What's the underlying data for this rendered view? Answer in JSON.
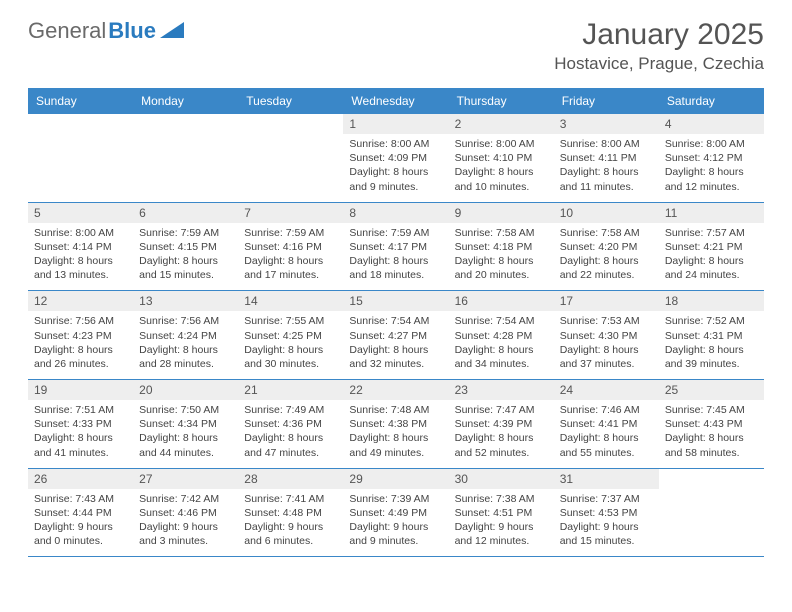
{
  "logo": {
    "general": "General",
    "blue": "Blue"
  },
  "title": "January 2025",
  "location": "Hostavice, Prague, Czechia",
  "accent_color": "#3a87c8",
  "daybar_color": "#eeeeee",
  "weekdays": [
    "Sunday",
    "Monday",
    "Tuesday",
    "Wednesday",
    "Thursday",
    "Friday",
    "Saturday"
  ],
  "weeks": [
    [
      {
        "num": "",
        "sunrise": "",
        "sunset": "",
        "daylight": ""
      },
      {
        "num": "",
        "sunrise": "",
        "sunset": "",
        "daylight": ""
      },
      {
        "num": "",
        "sunrise": "",
        "sunset": "",
        "daylight": ""
      },
      {
        "num": "1",
        "sunrise": "Sunrise: 8:00 AM",
        "sunset": "Sunset: 4:09 PM",
        "daylight": "Daylight: 8 hours and 9 minutes."
      },
      {
        "num": "2",
        "sunrise": "Sunrise: 8:00 AM",
        "sunset": "Sunset: 4:10 PM",
        "daylight": "Daylight: 8 hours and 10 minutes."
      },
      {
        "num": "3",
        "sunrise": "Sunrise: 8:00 AM",
        "sunset": "Sunset: 4:11 PM",
        "daylight": "Daylight: 8 hours and 11 minutes."
      },
      {
        "num": "4",
        "sunrise": "Sunrise: 8:00 AM",
        "sunset": "Sunset: 4:12 PM",
        "daylight": "Daylight: 8 hours and 12 minutes."
      }
    ],
    [
      {
        "num": "5",
        "sunrise": "Sunrise: 8:00 AM",
        "sunset": "Sunset: 4:14 PM",
        "daylight": "Daylight: 8 hours and 13 minutes."
      },
      {
        "num": "6",
        "sunrise": "Sunrise: 7:59 AM",
        "sunset": "Sunset: 4:15 PM",
        "daylight": "Daylight: 8 hours and 15 minutes."
      },
      {
        "num": "7",
        "sunrise": "Sunrise: 7:59 AM",
        "sunset": "Sunset: 4:16 PM",
        "daylight": "Daylight: 8 hours and 17 minutes."
      },
      {
        "num": "8",
        "sunrise": "Sunrise: 7:59 AM",
        "sunset": "Sunset: 4:17 PM",
        "daylight": "Daylight: 8 hours and 18 minutes."
      },
      {
        "num": "9",
        "sunrise": "Sunrise: 7:58 AM",
        "sunset": "Sunset: 4:18 PM",
        "daylight": "Daylight: 8 hours and 20 minutes."
      },
      {
        "num": "10",
        "sunrise": "Sunrise: 7:58 AM",
        "sunset": "Sunset: 4:20 PM",
        "daylight": "Daylight: 8 hours and 22 minutes."
      },
      {
        "num": "11",
        "sunrise": "Sunrise: 7:57 AM",
        "sunset": "Sunset: 4:21 PM",
        "daylight": "Daylight: 8 hours and 24 minutes."
      }
    ],
    [
      {
        "num": "12",
        "sunrise": "Sunrise: 7:56 AM",
        "sunset": "Sunset: 4:23 PM",
        "daylight": "Daylight: 8 hours and 26 minutes."
      },
      {
        "num": "13",
        "sunrise": "Sunrise: 7:56 AM",
        "sunset": "Sunset: 4:24 PM",
        "daylight": "Daylight: 8 hours and 28 minutes."
      },
      {
        "num": "14",
        "sunrise": "Sunrise: 7:55 AM",
        "sunset": "Sunset: 4:25 PM",
        "daylight": "Daylight: 8 hours and 30 minutes."
      },
      {
        "num": "15",
        "sunrise": "Sunrise: 7:54 AM",
        "sunset": "Sunset: 4:27 PM",
        "daylight": "Daylight: 8 hours and 32 minutes."
      },
      {
        "num": "16",
        "sunrise": "Sunrise: 7:54 AM",
        "sunset": "Sunset: 4:28 PM",
        "daylight": "Daylight: 8 hours and 34 minutes."
      },
      {
        "num": "17",
        "sunrise": "Sunrise: 7:53 AM",
        "sunset": "Sunset: 4:30 PM",
        "daylight": "Daylight: 8 hours and 37 minutes."
      },
      {
        "num": "18",
        "sunrise": "Sunrise: 7:52 AM",
        "sunset": "Sunset: 4:31 PM",
        "daylight": "Daylight: 8 hours and 39 minutes."
      }
    ],
    [
      {
        "num": "19",
        "sunrise": "Sunrise: 7:51 AM",
        "sunset": "Sunset: 4:33 PM",
        "daylight": "Daylight: 8 hours and 41 minutes."
      },
      {
        "num": "20",
        "sunrise": "Sunrise: 7:50 AM",
        "sunset": "Sunset: 4:34 PM",
        "daylight": "Daylight: 8 hours and 44 minutes."
      },
      {
        "num": "21",
        "sunrise": "Sunrise: 7:49 AM",
        "sunset": "Sunset: 4:36 PM",
        "daylight": "Daylight: 8 hours and 47 minutes."
      },
      {
        "num": "22",
        "sunrise": "Sunrise: 7:48 AM",
        "sunset": "Sunset: 4:38 PM",
        "daylight": "Daylight: 8 hours and 49 minutes."
      },
      {
        "num": "23",
        "sunrise": "Sunrise: 7:47 AM",
        "sunset": "Sunset: 4:39 PM",
        "daylight": "Daylight: 8 hours and 52 minutes."
      },
      {
        "num": "24",
        "sunrise": "Sunrise: 7:46 AM",
        "sunset": "Sunset: 4:41 PM",
        "daylight": "Daylight: 8 hours and 55 minutes."
      },
      {
        "num": "25",
        "sunrise": "Sunrise: 7:45 AM",
        "sunset": "Sunset: 4:43 PM",
        "daylight": "Daylight: 8 hours and 58 minutes."
      }
    ],
    [
      {
        "num": "26",
        "sunrise": "Sunrise: 7:43 AM",
        "sunset": "Sunset: 4:44 PM",
        "daylight": "Daylight: 9 hours and 0 minutes."
      },
      {
        "num": "27",
        "sunrise": "Sunrise: 7:42 AM",
        "sunset": "Sunset: 4:46 PM",
        "daylight": "Daylight: 9 hours and 3 minutes."
      },
      {
        "num": "28",
        "sunrise": "Sunrise: 7:41 AM",
        "sunset": "Sunset: 4:48 PM",
        "daylight": "Daylight: 9 hours and 6 minutes."
      },
      {
        "num": "29",
        "sunrise": "Sunrise: 7:39 AM",
        "sunset": "Sunset: 4:49 PM",
        "daylight": "Daylight: 9 hours and 9 minutes."
      },
      {
        "num": "30",
        "sunrise": "Sunrise: 7:38 AM",
        "sunset": "Sunset: 4:51 PM",
        "daylight": "Daylight: 9 hours and 12 minutes."
      },
      {
        "num": "31",
        "sunrise": "Sunrise: 7:37 AM",
        "sunset": "Sunset: 4:53 PM",
        "daylight": "Daylight: 9 hours and 15 minutes."
      },
      {
        "num": "",
        "sunrise": "",
        "sunset": "",
        "daylight": ""
      }
    ]
  ]
}
